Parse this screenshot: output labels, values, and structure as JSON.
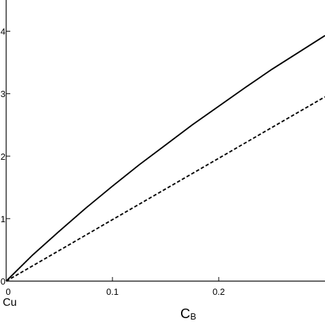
{
  "chart_data": {
    "type": "line",
    "title": "",
    "xlabel": "C",
    "xlabel_subscript": "B",
    "ylabel": "",
    "corner_label": "Cu",
    "xlim": [
      0,
      0.3
    ],
    "ylim": [
      0,
      4.5
    ],
    "x_ticks": [
      0,
      0.1,
      0.2
    ],
    "x_tick_labels": [
      "0",
      "0.1",
      "0.2"
    ],
    "y_ticks": [
      0,
      1,
      2,
      3,
      4
    ],
    "y_tick_labels": [
      "0",
      "1",
      "2",
      "3",
      "4"
    ],
    "grid": false,
    "legend": "none",
    "series": [
      {
        "style": "solid",
        "color": "#000000",
        "x": [
          0,
          0.025,
          0.05,
          0.075,
          0.1,
          0.125,
          0.15,
          0.175,
          0.2,
          0.225,
          0.25,
          0.275,
          0.3
        ],
        "y": [
          0,
          0.42,
          0.8,
          1.17,
          1.52,
          1.86,
          2.18,
          2.5,
          2.8,
          3.1,
          3.39,
          3.66,
          3.93
        ]
      },
      {
        "style": "dashed",
        "color": "#000000",
        "x": [
          0,
          0.3
        ],
        "y": [
          0,
          2.95
        ]
      }
    ]
  }
}
